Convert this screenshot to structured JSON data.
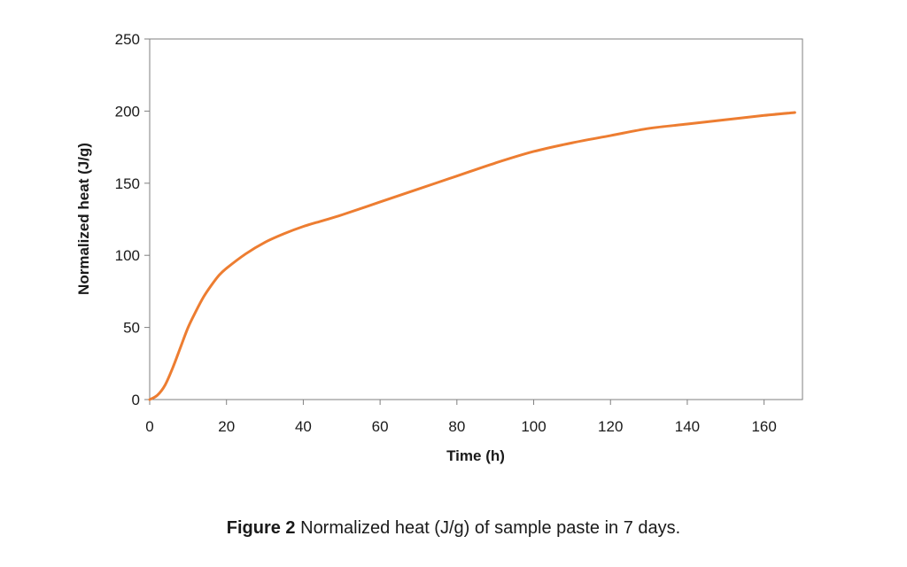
{
  "chart_data": {
    "type": "line",
    "xlabel": "Time (h)",
    "ylabel": "Normalized heat (J/g)",
    "xlim": [
      0,
      170
    ],
    "ylim": [
      0,
      250
    ],
    "xticks": [
      0,
      20,
      40,
      60,
      80,
      100,
      120,
      140,
      160
    ],
    "yticks": [
      0,
      50,
      100,
      150,
      200,
      250
    ],
    "grid": false,
    "legend": "none",
    "series": [
      {
        "color": "#ED7D31",
        "x": [
          0,
          2,
          4,
          6,
          8,
          10,
          12,
          14,
          16,
          18,
          20,
          25,
          30,
          35,
          40,
          45,
          50,
          60,
          70,
          80,
          90,
          100,
          110,
          120,
          130,
          140,
          150,
          160,
          168
        ],
        "y": [
          0,
          3,
          10,
          22,
          36,
          50,
          61,
          71,
          79,
          86,
          91,
          101,
          109,
          115,
          120,
          124,
          128,
          137,
          146,
          155,
          164,
          172,
          178,
          183,
          188,
          191,
          194,
          197,
          199
        ]
      }
    ]
  },
  "caption": {
    "label": "Figure 2",
    "text": " Normalized heat (J/g) of sample paste in 7 days."
  }
}
